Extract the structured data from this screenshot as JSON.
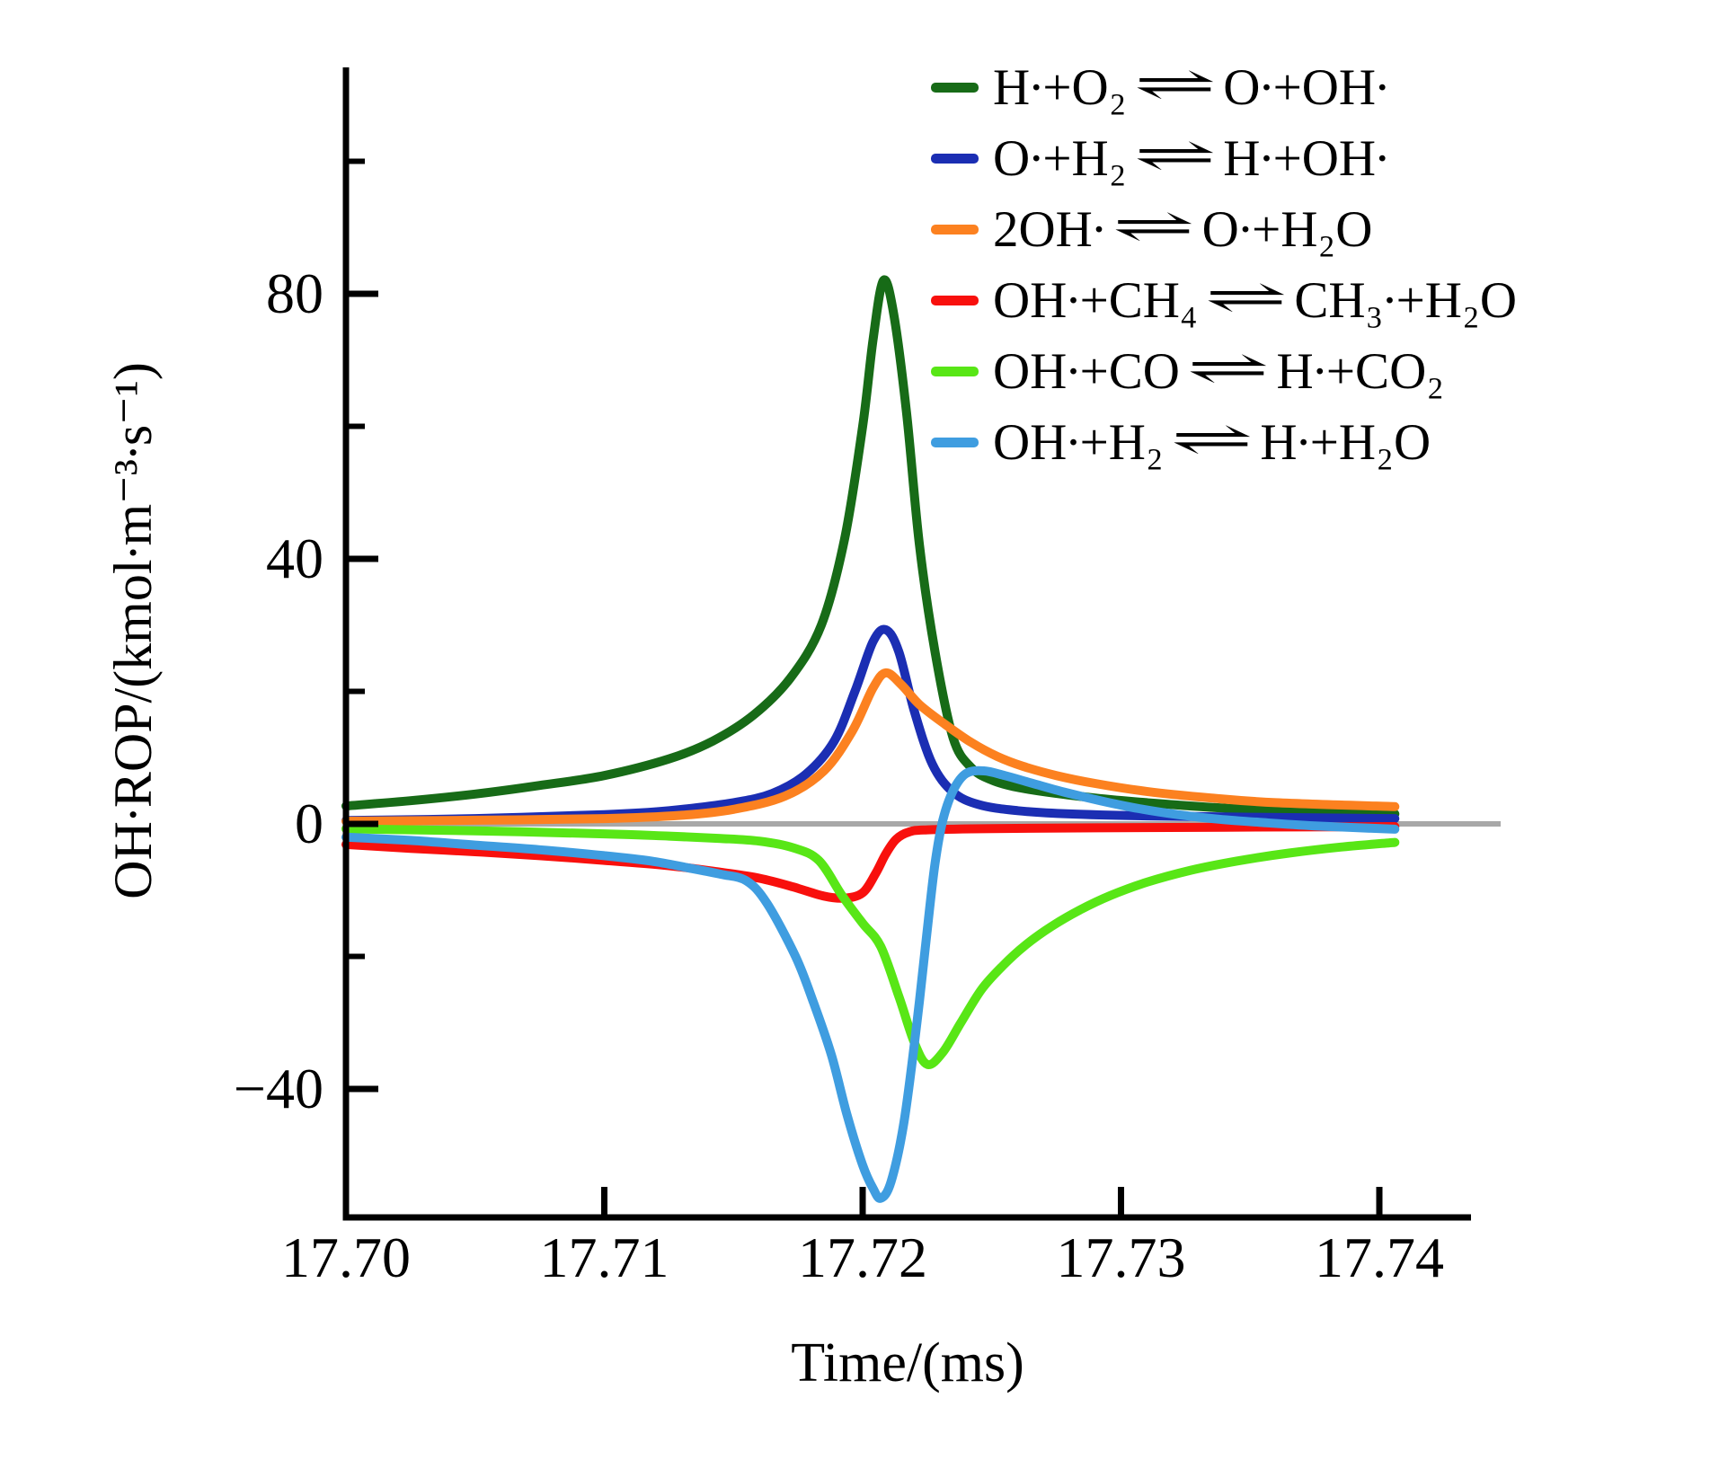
{
  "chart_data": {
    "type": "line",
    "title": "",
    "xlabel": "Time/(ms)",
    "ylabel": "OH∙ROP/(kmol∙m⁻³∙s⁻¹)",
    "xlim": [
      17.7,
      17.7435
    ],
    "ylim": [
      -59.5,
      114
    ],
    "grid": false,
    "legend_position": "upper right",
    "zero_line_color": "#a8a8a8",
    "axis_color": "#000000",
    "arrow": "⇌",
    "x_ticks": [
      {
        "v": 17.7,
        "label": "17.70"
      },
      {
        "v": 17.71,
        "label": "17.71"
      },
      {
        "v": 17.72,
        "label": "17.72"
      },
      {
        "v": 17.73,
        "label": "17.73"
      },
      {
        "v": 17.74,
        "label": "17.74"
      }
    ],
    "y_ticks_major": [
      {
        "v": 80,
        "label": "80"
      },
      {
        "v": 40,
        "label": "40"
      },
      {
        "v": 0,
        "label": "0"
      },
      {
        "v": -40,
        "label": "−40"
      }
    ],
    "y_ticks_minor": [
      100,
      60,
      20,
      -20
    ],
    "series": [
      {
        "id": "h_o2",
        "color": "#176b17",
        "lhs": "H∙+O₂",
        "rhs": "O∙+OH∙",
        "name": "H∙+O₂ ⇌ O∙+OH∙",
        "points": [
          [
            17.7,
            2.7
          ],
          [
            17.7025,
            3.5
          ],
          [
            17.705,
            4.5
          ],
          [
            17.7075,
            5.8
          ],
          [
            17.71,
            7.3
          ],
          [
            17.7125,
            9.8
          ],
          [
            17.7142,
            12.5
          ],
          [
            17.7158,
            16.5
          ],
          [
            17.7172,
            22
          ],
          [
            17.7184,
            30
          ],
          [
            17.7193,
            43
          ],
          [
            17.72,
            60
          ],
          [
            17.7204,
            73
          ],
          [
            17.7208,
            82
          ],
          [
            17.7212,
            77
          ],
          [
            17.7217,
            62
          ],
          [
            17.7222,
            42
          ],
          [
            17.7228,
            26
          ],
          [
            17.7235,
            13
          ],
          [
            17.7242,
            8.5
          ],
          [
            17.725,
            6.6
          ],
          [
            17.726,
            5.5
          ],
          [
            17.7275,
            4.6
          ],
          [
            17.729,
            3.9
          ],
          [
            17.731,
            3.2
          ],
          [
            17.7335,
            2.5
          ],
          [
            17.7365,
            1.9
          ],
          [
            17.7406,
            1.5
          ]
        ]
      },
      {
        "id": "o_h2",
        "color": "#1b2eb3",
        "lhs": "O∙+H₂",
        "rhs": "H∙+OH∙",
        "name": "O∙+H₂ ⇌ H∙+OH∙",
        "points": [
          [
            17.7,
            0.5
          ],
          [
            17.705,
            0.8
          ],
          [
            17.71,
            1.4
          ],
          [
            17.7125,
            2.0
          ],
          [
            17.715,
            3.2
          ],
          [
            17.7165,
            4.6
          ],
          [
            17.7178,
            7.5
          ],
          [
            17.7189,
            12.5
          ],
          [
            17.7197,
            20
          ],
          [
            17.7204,
            27.5
          ],
          [
            17.7209,
            29.3
          ],
          [
            17.7214,
            26
          ],
          [
            17.722,
            17
          ],
          [
            17.7227,
            9
          ],
          [
            17.7235,
            4.8
          ],
          [
            17.7245,
            2.9
          ],
          [
            17.726,
            2.0
          ],
          [
            17.728,
            1.5
          ],
          [
            17.731,
            1.2
          ],
          [
            17.735,
            1.0
          ],
          [
            17.7406,
            0.8
          ]
        ]
      },
      {
        "id": "oh_oh",
        "color": "#fc8120",
        "lhs": "2OH∙",
        "rhs": "O∙+H₂O",
        "name": "2OH∙ ⇌ O∙+H₂O",
        "points": [
          [
            17.7,
            0.4
          ],
          [
            17.705,
            0.55
          ],
          [
            17.71,
            0.8
          ],
          [
            17.713,
            1.3
          ],
          [
            17.715,
            2.2
          ],
          [
            17.717,
            4.2
          ],
          [
            17.7185,
            8.0
          ],
          [
            17.7196,
            14
          ],
          [
            17.7204,
            20.5
          ],
          [
            17.7209,
            22.8
          ],
          [
            17.7215,
            21
          ],
          [
            17.7222,
            18
          ],
          [
            17.7232,
            15
          ],
          [
            17.7242,
            12.3
          ],
          [
            17.7252,
            10.2
          ],
          [
            17.7262,
            8.7
          ],
          [
            17.7275,
            7.3
          ],
          [
            17.729,
            6.1
          ],
          [
            17.731,
            4.9
          ],
          [
            17.7335,
            3.9
          ],
          [
            17.736,
            3.2
          ],
          [
            17.7406,
            2.6
          ]
        ]
      },
      {
        "id": "oh_ch4",
        "color": "#f8100d",
        "lhs": "OH∙+CH₄",
        "rhs": "CH₃∙+H₂O",
        "name": "OH∙+CH₄ ⇌ CH₃∙+H₂O",
        "points": [
          [
            17.7,
            -3.1
          ],
          [
            17.7025,
            -3.7
          ],
          [
            17.705,
            -4.2
          ],
          [
            17.7075,
            -4.8
          ],
          [
            17.71,
            -5.5
          ],
          [
            17.7125,
            -6.3
          ],
          [
            17.7145,
            -7.3
          ],
          [
            17.716,
            -8.2
          ],
          [
            17.7173,
            -9.5
          ],
          [
            17.7185,
            -10.9
          ],
          [
            17.7193,
            -11.2
          ],
          [
            17.72,
            -10.4
          ],
          [
            17.7205,
            -7.5
          ],
          [
            17.7209,
            -4.5
          ],
          [
            17.7213,
            -2.3
          ],
          [
            17.7218,
            -1.2
          ],
          [
            17.7225,
            -0.9
          ],
          [
            17.725,
            -0.7
          ],
          [
            17.729,
            -0.6
          ],
          [
            17.734,
            -0.5
          ],
          [
            17.7406,
            -0.4
          ]
        ]
      },
      {
        "id": "oh_co",
        "color": "#58e616",
        "lhs": "OH∙+CO",
        "rhs": "H∙+CO₂",
        "name": "OH∙+CO ⇌ H∙+CO₂",
        "points": [
          [
            17.7,
            -0.75
          ],
          [
            17.705,
            -1.05
          ],
          [
            17.71,
            -1.5
          ],
          [
            17.7125,
            -1.85
          ],
          [
            17.7145,
            -2.2
          ],
          [
            17.716,
            -2.6
          ],
          [
            17.7173,
            -3.6
          ],
          [
            17.7183,
            -5.5
          ],
          [
            17.7192,
            -10.8
          ],
          [
            17.72,
            -15
          ],
          [
            17.7207,
            -18.5
          ],
          [
            17.7214,
            -26
          ],
          [
            17.722,
            -33
          ],
          [
            17.7225,
            -36.3
          ],
          [
            17.7231,
            -34.5
          ],
          [
            17.7238,
            -30
          ],
          [
            17.7246,
            -25
          ],
          [
            17.7254,
            -21.5
          ],
          [
            17.7263,
            -18.3
          ],
          [
            17.7273,
            -15.5
          ],
          [
            17.7284,
            -13
          ],
          [
            17.7296,
            -10.8
          ],
          [
            17.731,
            -8.8
          ],
          [
            17.7327,
            -7
          ],
          [
            17.7345,
            -5.6
          ],
          [
            17.7365,
            -4.4
          ],
          [
            17.7385,
            -3.5
          ],
          [
            17.7406,
            -2.8
          ]
        ]
      },
      {
        "id": "oh_h2",
        "color": "#3f9de0",
        "lhs": "OH∙+H₂",
        "rhs": "H∙+H₂O",
        "name": "OH∙+H₂ ⇌ H∙+H₂O",
        "points": [
          [
            17.7,
            -2.0
          ],
          [
            17.7025,
            -2.5
          ],
          [
            17.705,
            -3.2
          ],
          [
            17.7075,
            -3.9
          ],
          [
            17.71,
            -4.8
          ],
          [
            17.7118,
            -5.6
          ],
          [
            17.7132,
            -6.6
          ],
          [
            17.7145,
            -7.6
          ],
          [
            17.7155,
            -8.6
          ],
          [
            17.7163,
            -12
          ],
          [
            17.7174,
            -20
          ],
          [
            17.7181,
            -27
          ],
          [
            17.7188,
            -35
          ],
          [
            17.7194,
            -44
          ],
          [
            17.72,
            -51.5
          ],
          [
            17.7204,
            -55
          ],
          [
            17.7207,
            -56.5
          ],
          [
            17.7211,
            -54
          ],
          [
            17.7216,
            -45
          ],
          [
            17.7221,
            -30
          ],
          [
            17.7225,
            -16
          ],
          [
            17.7228,
            -6
          ],
          [
            17.7231,
            0.5
          ],
          [
            17.7235,
            5
          ],
          [
            17.724,
            7.6
          ],
          [
            17.7247,
            8.0
          ],
          [
            17.7255,
            7.3
          ],
          [
            17.7265,
            6.2
          ],
          [
            17.7278,
            4.8
          ],
          [
            17.7292,
            3.5
          ],
          [
            17.7307,
            2.3
          ],
          [
            17.7322,
            1.4
          ],
          [
            17.7338,
            0.7
          ],
          [
            17.7355,
            0.2
          ],
          [
            17.7375,
            -0.3
          ],
          [
            17.7406,
            -0.8
          ]
        ]
      }
    ]
  }
}
